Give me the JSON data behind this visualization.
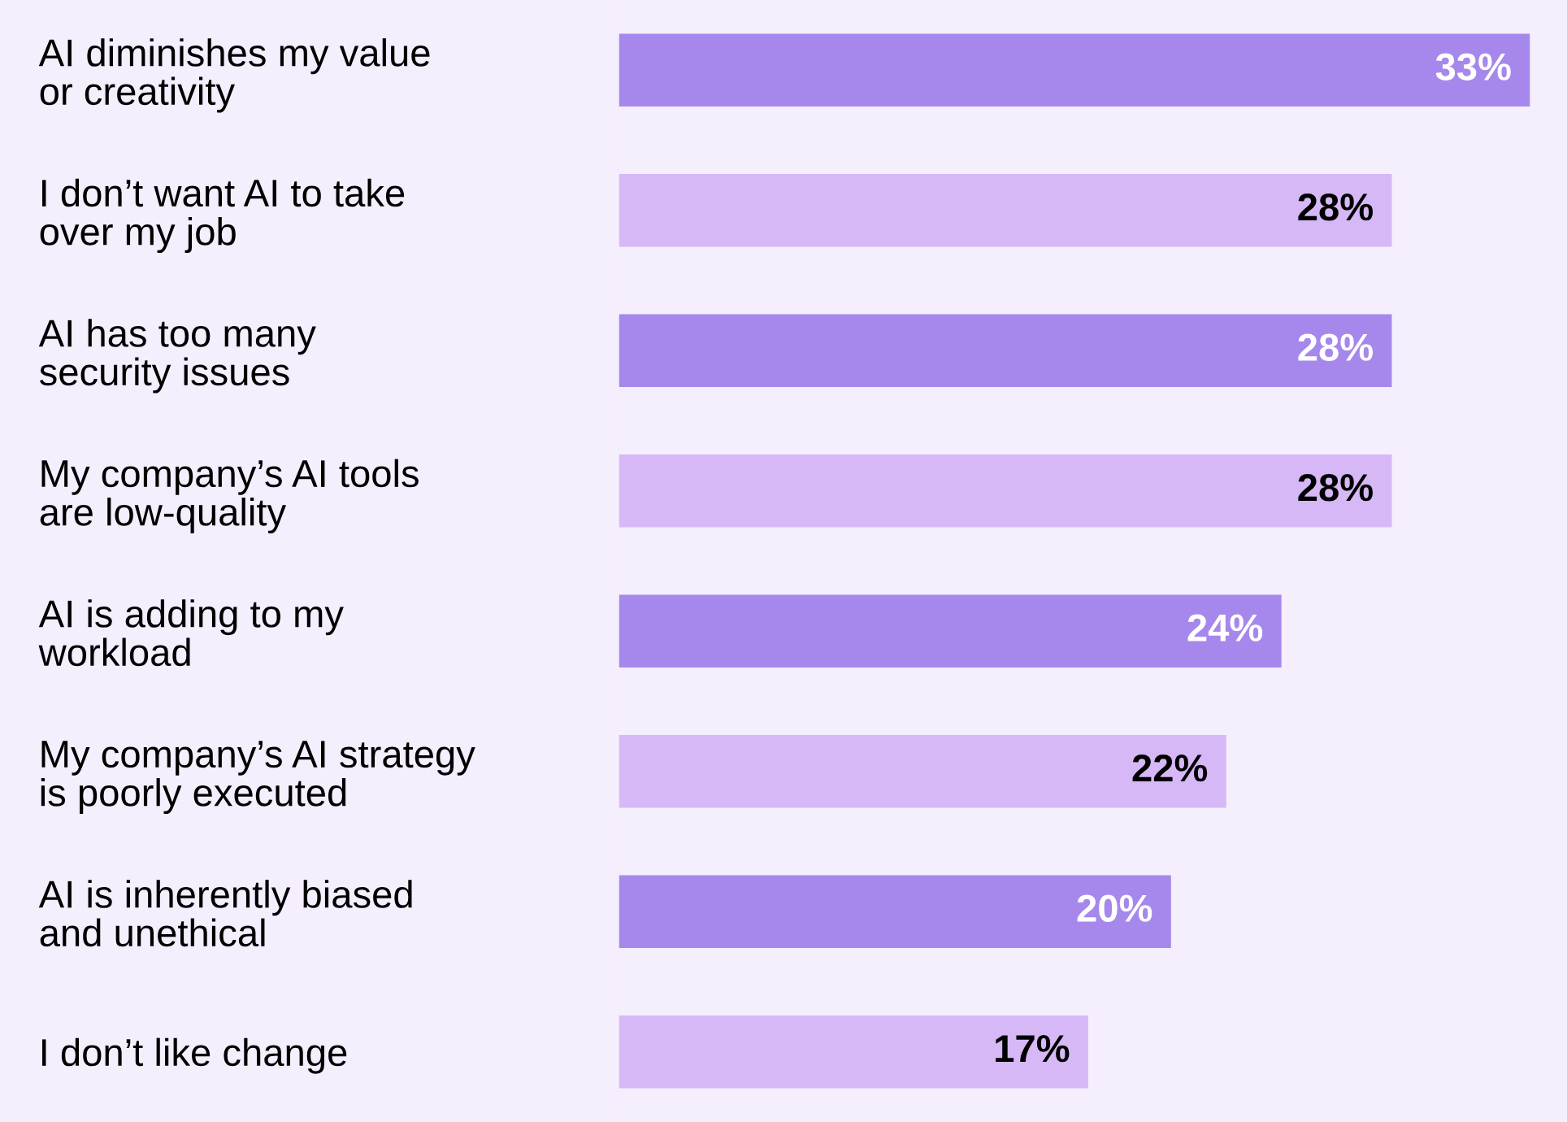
{
  "chart_data": {
    "type": "bar",
    "orientation": "horizontal",
    "categories": [
      "AI diminishes my value\nor creativity",
      "I don’t want AI to take\nover my job",
      "AI has too many\nsecurity issues",
      "My company’s AI tools\nare low-quality",
      "AI is adding to my\nworkload",
      "My company’s AI strategy\nis poorly executed",
      "AI is inherently biased\nand unethical",
      "I don’t like change"
    ],
    "values": [
      33,
      28,
      28,
      28,
      24,
      22,
      20,
      17
    ],
    "value_labels": [
      "33%",
      "28%",
      "28%",
      "28%",
      "24%",
      "22%",
      "20%",
      "17%"
    ],
    "colors": [
      "#a688ec",
      "#d6b8f6",
      "#a688ec",
      "#d6b8f6",
      "#a688ec",
      "#d6b8f6",
      "#a688ec",
      "#d6b8f6"
    ],
    "tick_labels": "y",
    "grid": false,
    "legend": false
  }
}
